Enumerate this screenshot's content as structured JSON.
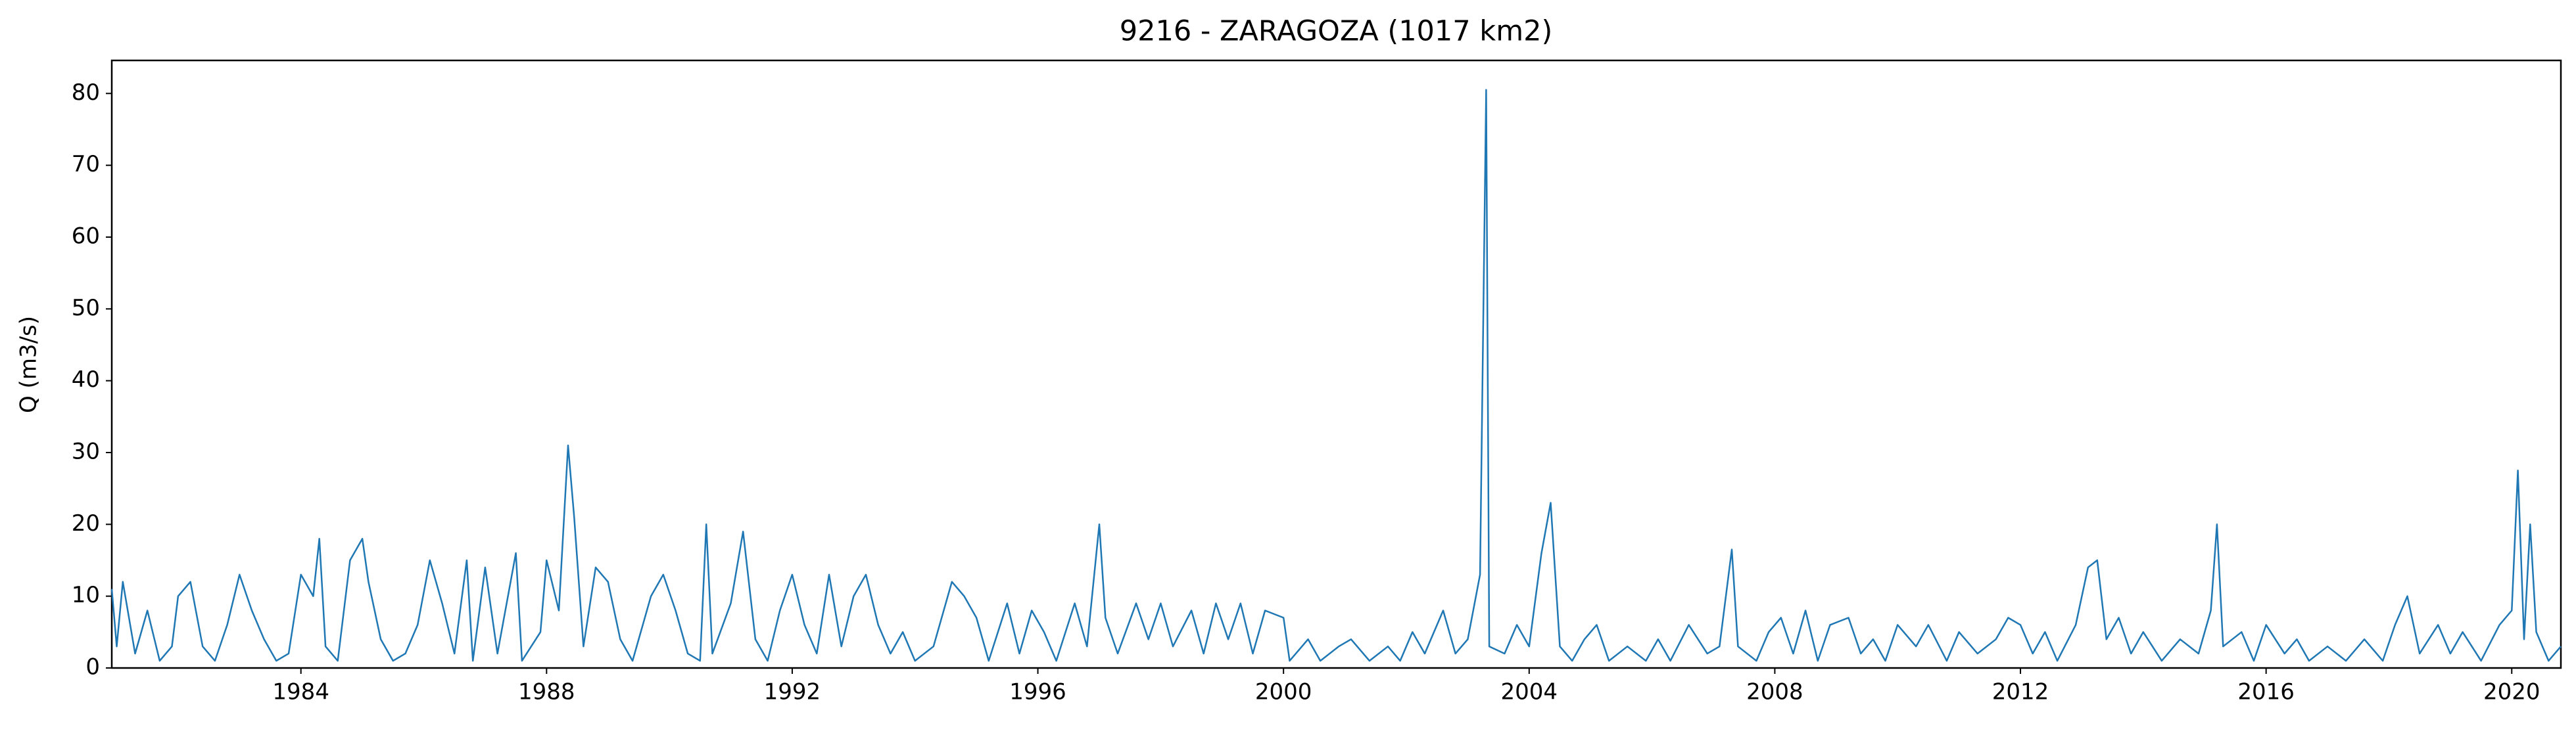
{
  "chart_data": {
    "type": "line",
    "title": "9216 - ZARAGOZA (1017 km2)",
    "y_label": "Q (m3/s)",
    "x": [
      1980.92,
      1981.0,
      1981.1,
      1981.3,
      1981.5,
      1981.7,
      1981.9,
      1982.0,
      1982.2,
      1982.4,
      1982.6,
      1982.8,
      1983.0,
      1983.2,
      1983.4,
      1983.6,
      1983.8,
      1984.0,
      1984.2,
      1984.3,
      1984.4,
      1984.6,
      1984.8,
      1985.0,
      1985.1,
      1985.3,
      1985.5,
      1985.7,
      1985.9,
      1986.1,
      1986.3,
      1986.5,
      1986.7,
      1986.8,
      1987.0,
      1987.2,
      1987.5,
      1987.6,
      1987.9,
      1988.0,
      1988.2,
      1988.35,
      1988.45,
      1988.6,
      1988.8,
      1989.0,
      1989.2,
      1989.4,
      1989.7,
      1989.9,
      1990.1,
      1990.3,
      1990.5,
      1990.6,
      1990.7,
      1991.0,
      1991.2,
      1991.4,
      1991.6,
      1991.8,
      1992.0,
      1992.2,
      1992.4,
      1992.6,
      1992.8,
      1993.0,
      1993.2,
      1993.4,
      1993.6,
      1993.8,
      1994.0,
      1994.3,
      1994.6,
      1994.8,
      1995.0,
      1995.2,
      1995.5,
      1995.7,
      1995.9,
      1996.1,
      1996.3,
      1996.6,
      1996.8,
      1997.0,
      1997.1,
      1997.3,
      1997.6,
      1997.8,
      1998.0,
      1998.2,
      1998.5,
      1998.7,
      1998.9,
      1999.1,
      1999.3,
      1999.5,
      1999.7,
      2000.0,
      2000.1,
      2000.4,
      2000.6,
      2000.9,
      2001.1,
      2001.4,
      2001.7,
      2001.9,
      2002.1,
      2002.3,
      2002.6,
      2002.8,
      2003.0,
      2003.2,
      2003.3,
      2003.35,
      2003.6,
      2003.8,
      2004.0,
      2004.2,
      2004.35,
      2004.5,
      2004.7,
      2004.9,
      2005.1,
      2005.3,
      2005.6,
      2005.9,
      2006.1,
      2006.3,
      2006.6,
      2006.9,
      2007.1,
      2007.3,
      2007.4,
      2007.7,
      2007.9,
      2008.1,
      2008.3,
      2008.5,
      2008.7,
      2008.9,
      2009.2,
      2009.4,
      2009.6,
      2009.8,
      2010.0,
      2010.3,
      2010.5,
      2010.8,
      2011.0,
      2011.3,
      2011.6,
      2011.8,
      2012.0,
      2012.2,
      2012.4,
      2012.6,
      2012.9,
      2013.1,
      2013.25,
      2013.4,
      2013.6,
      2013.8,
      2014.0,
      2014.3,
      2014.6,
      2014.9,
      2015.1,
      2015.2,
      2015.3,
      2015.6,
      2015.8,
      2016.0,
      2016.3,
      2016.5,
      2016.7,
      2017.0,
      2017.3,
      2017.6,
      2017.9,
      2018.1,
      2018.3,
      2018.5,
      2018.8,
      2019.0,
      2019.2,
      2019.5,
      2019.8,
      2020.0,
      2020.1,
      2020.2,
      2020.3,
      2020.4,
      2020.6,
      2020.8
    ],
    "series": [
      {
        "color": "#1f77b4",
        "values": [
          11,
          3,
          12,
          2,
          8,
          1,
          3,
          10,
          12,
          3,
          1,
          6,
          13,
          8,
          4,
          1,
          2,
          13,
          10,
          18,
          3,
          1,
          15,
          18,
          12,
          4,
          1,
          2,
          6,
          15,
          9,
          2,
          15,
          1,
          14,
          2,
          16,
          1,
          5,
          15,
          8,
          31,
          21,
          3,
          14,
          12,
          4,
          1,
          10,
          13,
          8,
          2,
          1,
          20,
          2,
          9,
          19,
          4,
          1,
          8,
          13,
          6,
          2,
          13,
          3,
          10,
          13,
          6,
          2,
          5,
          1,
          3,
          12,
          10,
          7,
          1,
          9,
          2,
          8,
          5,
          1,
          9,
          3,
          20,
          7,
          2,
          9,
          4,
          9,
          3,
          8,
          2,
          9,
          4,
          9,
          2,
          8,
          7,
          1,
          4,
          1,
          3,
          4,
          1,
          3,
          1,
          5,
          2,
          8,
          2,
          4,
          13,
          80.5,
          3,
          2,
          6,
          3,
          16,
          23,
          3,
          1,
          4,
          6,
          1,
          3,
          1,
          4,
          1,
          6,
          2,
          3,
          16.5,
          3,
          1,
          5,
          7,
          2,
          8,
          1,
          6,
          7,
          2,
          4,
          1,
          6,
          3,
          6,
          1,
          5,
          2,
          4,
          7,
          6,
          2,
          5,
          1,
          6,
          14,
          15,
          4,
          7,
          2,
          5,
          1,
          4,
          2,
          8,
          20,
          3,
          5,
          1,
          6,
          2,
          4,
          1,
          3,
          1,
          4,
          1,
          6,
          10,
          2,
          6,
          2,
          5,
          1,
          6,
          8,
          27.5,
          4,
          20,
          5,
          1,
          3
        ]
      }
    ],
    "xlim": [
      1980.92,
      2020.8
    ],
    "ylim": [
      0,
      84.6
    ],
    "xticks": [
      1984,
      1988,
      1992,
      1996,
      2000,
      2004,
      2008,
      2012,
      2016,
      2020
    ],
    "yticks": [
      0,
      10,
      20,
      30,
      40,
      50,
      60,
      70,
      80
    ]
  }
}
